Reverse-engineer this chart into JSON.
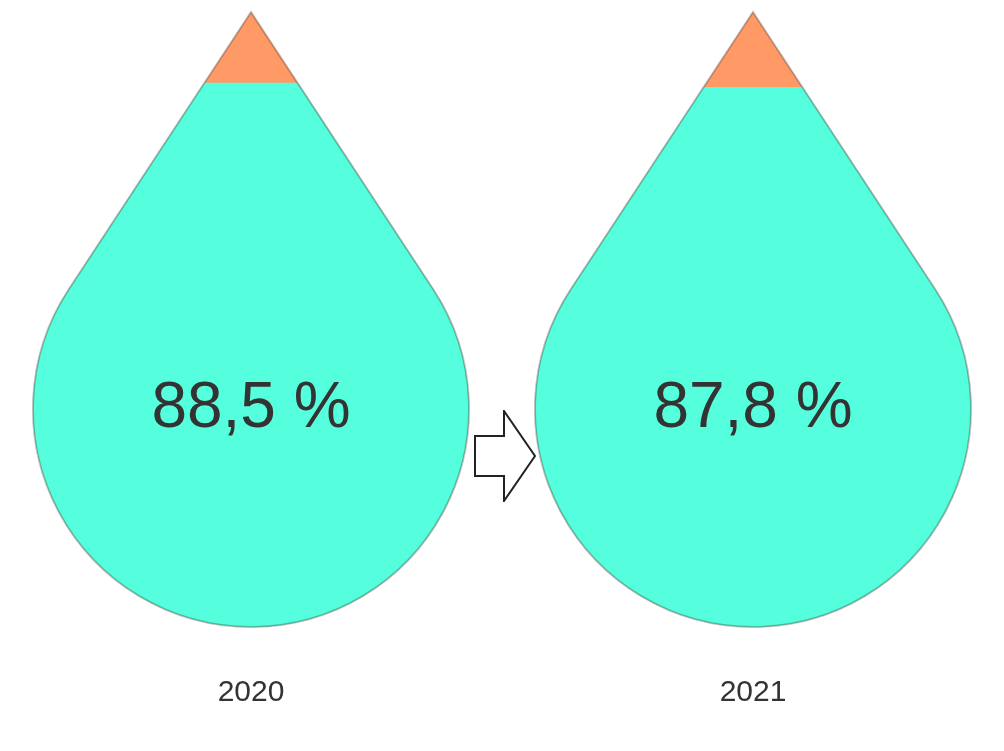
{
  "chart_data": {
    "type": "other",
    "categories": [
      "2020",
      "2021"
    ],
    "values": [
      88.5,
      87.8
    ],
    "colors": [
      "#55ffdd",
      "#55ffdd"
    ],
    "value_labels": [
      "88,5 %",
      "87,8 %"
    ]
  }
}
